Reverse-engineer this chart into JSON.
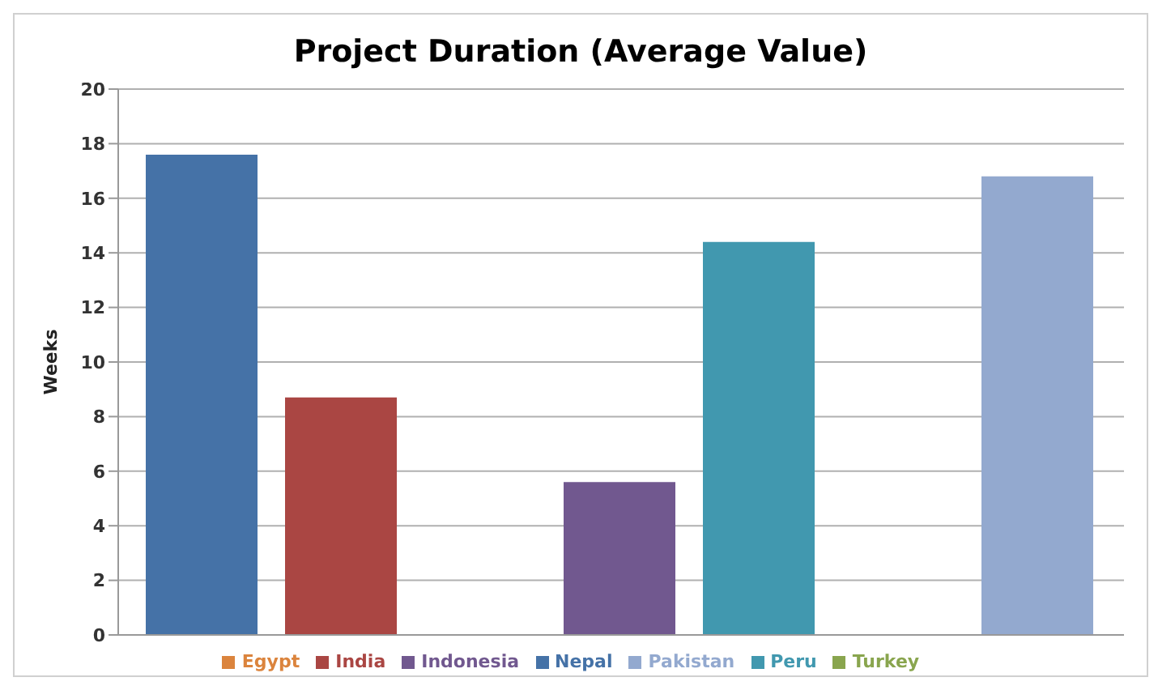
{
  "chart_data": {
    "type": "bar",
    "title": "Project Duration (Average Value)",
    "ylabel": "Weeks",
    "categories": [
      null
    ],
    "series": [
      {
        "name": "Nepal",
        "color": "#4572a7",
        "values": [
          17.6
        ]
      },
      {
        "name": "India",
        "color": "#aa4643",
        "values": [
          8.7
        ]
      },
      {
        "name": "Turkey",
        "color": "#89a54e",
        "values": [
          null
        ]
      },
      {
        "name": "Indonesia",
        "color": "#71588f",
        "values": [
          5.6
        ]
      },
      {
        "name": "Peru",
        "color": "#4198af",
        "values": [
          14.4
        ]
      },
      {
        "name": "Egypt",
        "color": "#db843d",
        "values": [
          null
        ]
      },
      {
        "name": "Pakistan",
        "color": "#93a9cf",
        "values": [
          16.8
        ]
      }
    ],
    "ylim": [
      0,
      20
    ],
    "yticks": [
      0,
      2,
      4,
      6,
      8,
      10,
      12,
      14,
      16,
      18,
      20
    ],
    "grid": "y",
    "legend": "bottom"
  }
}
